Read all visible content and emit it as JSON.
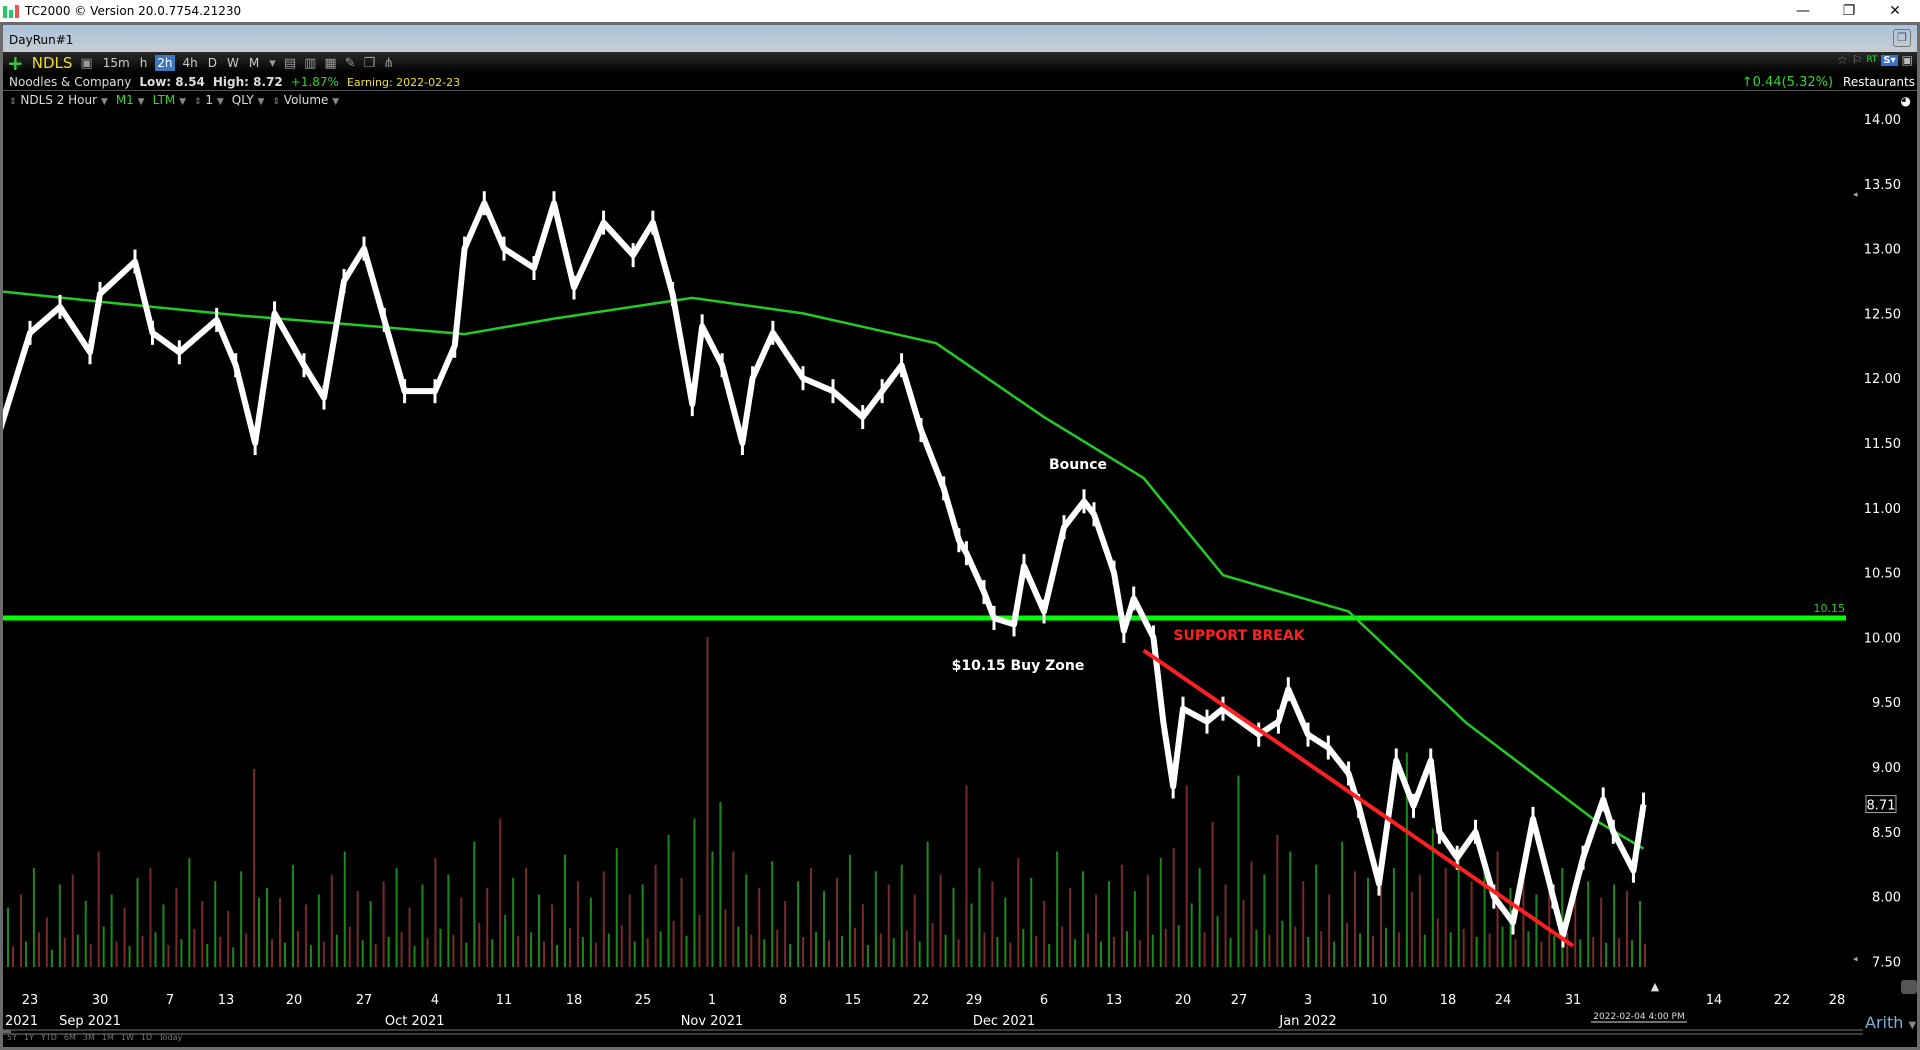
{
  "window": {
    "title": "TC2000 © Version 20.0.7754.21230",
    "minimize": "—",
    "restore": "❐",
    "close": "✕"
  },
  "tab": {
    "label": "DayRun#1"
  },
  "toolbar": {
    "symbol": "NDLS",
    "timeframes": [
      "15m",
      "h",
      "2h",
      "4h",
      "D",
      "W",
      "M"
    ],
    "active_timeframe": "2h"
  },
  "info": {
    "company": "Noodles & Company",
    "low": "Low: 8.54",
    "high": "High: 8.72",
    "change_pct": "+1.87%",
    "earning": "Earning: 2022-02-23",
    "net_change": "0.44",
    "net_change_pct": "(5.32%)",
    "industry": "Restaurants",
    "rt": "RT",
    "s_button": "S▾"
  },
  "indicators": [
    "NDLS 2 Hour",
    "M1",
    "LTM",
    "1",
    "QLY",
    "Volume"
  ],
  "colors": {
    "price": "#ffffff",
    "ma": "#22cc22",
    "support": "#00ff00",
    "trend": "#ff2020",
    "vol_up": "#1a8a1a",
    "vol_down": "#7a2a2a",
    "accent": "#3a78c0"
  },
  "chart_data": {
    "type": "line",
    "ylim": [
      7.5,
      14.0
    ],
    "y_ticks": [
      "14.00",
      "13.50",
      "13.00",
      "12.50",
      "12.00",
      "11.50",
      "11.00",
      "10.50",
      "10.00",
      "9.50",
      "9.00",
      "8.50",
      "8.00",
      "7.50"
    ],
    "y_tick_values": [
      14,
      13.5,
      13,
      12.5,
      12,
      11.5,
      11,
      10.5,
      10,
      9.5,
      9,
      8.5,
      8,
      7.5
    ],
    "x_ticks": [
      {
        "date": "2021-08-23",
        "label": "23"
      },
      {
        "date": "2021-08-30",
        "label": "30"
      },
      {
        "date": "2021-09-07",
        "label": "7"
      },
      {
        "date": "2021-09-13",
        "label": "13"
      },
      {
        "date": "2021-09-20",
        "label": "20"
      },
      {
        "date": "2021-09-27",
        "label": "27"
      },
      {
        "date": "2021-10-04",
        "label": "4"
      },
      {
        "date": "2021-10-11",
        "label": "11"
      },
      {
        "date": "2021-10-18",
        "label": "18"
      },
      {
        "date": "2021-10-25",
        "label": "25"
      },
      {
        "date": "2021-11-01",
        "label": "1"
      },
      {
        "date": "2021-11-08",
        "label": "8"
      },
      {
        "date": "2021-11-15",
        "label": "15"
      },
      {
        "date": "2021-11-22",
        "label": "22"
      },
      {
        "date": "2021-11-29",
        "label": "29"
      },
      {
        "date": "2021-12-06",
        "label": "6"
      },
      {
        "date": "2021-12-13",
        "label": "13"
      },
      {
        "date": "2021-12-20",
        "label": "20"
      },
      {
        "date": "2021-12-27",
        "label": "27"
      },
      {
        "date": "2022-01-03",
        "label": "3"
      },
      {
        "date": "2022-01-10",
        "label": "10"
      },
      {
        "date": "2022-01-18",
        "label": "18"
      },
      {
        "date": "2022-01-24",
        "label": "24"
      },
      {
        "date": "2022-01-31",
        "label": "31"
      },
      {
        "date": "2022-02-14",
        "label": "14"
      },
      {
        "date": "2022-02-22",
        "label": "22"
      },
      {
        "date": "2022-02-28",
        "label": "28"
      }
    ],
    "month_labels": [
      {
        "date": "2021-08-29",
        "label": "Sep 2021"
      },
      {
        "date": "2021-10-02",
        "label": "Oct 2021"
      },
      {
        "date": "2021-11-01",
        "label": "Nov 2021"
      },
      {
        "date": "2021-12-02",
        "label": "Dec 2021"
      },
      {
        "date": "2022-01-03",
        "label": "Jan 2022"
      }
    ],
    "left_edge_label": "2021",
    "price": [
      [
        "2021-08-20",
        11.6
      ],
      [
        "2021-08-23",
        12.35
      ],
      [
        "2021-08-26",
        12.55
      ],
      [
        "2021-08-29",
        12.2
      ],
      [
        "2021-08-30",
        12.65
      ],
      [
        "2021-09-03",
        12.9
      ],
      [
        "2021-09-05",
        12.35
      ],
      [
        "2021-09-08",
        12.2
      ],
      [
        "2021-09-12",
        12.45
      ],
      [
        "2021-09-14",
        12.1
      ],
      [
        "2021-09-16",
        11.5
      ],
      [
        "2021-09-18",
        12.5
      ],
      [
        "2021-09-21",
        12.1
      ],
      [
        "2021-09-23",
        11.85
      ],
      [
        "2021-09-25",
        12.75
      ],
      [
        "2021-09-27",
        13.0
      ],
      [
        "2021-09-29",
        12.45
      ],
      [
        "2021-10-01",
        11.9
      ],
      [
        "2021-10-04",
        11.9
      ],
      [
        "2021-10-06",
        12.25
      ],
      [
        "2021-10-07",
        13.0
      ],
      [
        "2021-10-09",
        13.35
      ],
      [
        "2021-10-11",
        13.0
      ],
      [
        "2021-10-14",
        12.85
      ],
      [
        "2021-10-16",
        13.35
      ],
      [
        "2021-10-18",
        12.7
      ],
      [
        "2021-10-21",
        13.2
      ],
      [
        "2021-10-24",
        12.95
      ],
      [
        "2021-10-26",
        13.2
      ],
      [
        "2021-10-28",
        12.65
      ],
      [
        "2021-10-30",
        11.8
      ],
      [
        "2021-10-31",
        12.4
      ],
      [
        "2021-11-02",
        12.1
      ],
      [
        "2021-11-04",
        11.5
      ],
      [
        "2021-11-05",
        12.0
      ],
      [
        "2021-11-07",
        12.35
      ],
      [
        "2021-11-10",
        12.0
      ],
      [
        "2021-11-13",
        11.9
      ],
      [
        "2021-11-16",
        11.7
      ],
      [
        "2021-11-18",
        11.9
      ],
      [
        "2021-11-20",
        12.1
      ],
      [
        "2021-11-22",
        11.6
      ],
      [
        "2021-11-25",
        11.15
      ],
      [
        "2021-11-27",
        10.75
      ],
      [
        "2021-11-28",
        10.65
      ],
      [
        "2021-11-30",
        10.35
      ],
      [
        "2021-12-01",
        10.15
      ],
      [
        "2021-12-03",
        10.1
      ],
      [
        "2021-12-04",
        10.55
      ],
      [
        "2021-12-06",
        10.2
      ],
      [
        "2021-12-08",
        10.85
      ],
      [
        "2021-12-10",
        11.05
      ],
      [
        "2021-12-11",
        10.95
      ],
      [
        "2021-12-13",
        10.5
      ],
      [
        "2021-12-14",
        10.05
      ],
      [
        "2021-12-15",
        10.3
      ],
      [
        "2021-12-17",
        10.0
      ],
      [
        "2021-12-18",
        9.35
      ],
      [
        "2021-12-19",
        8.85
      ],
      [
        "2021-12-20",
        9.45
      ],
      [
        "2021-12-23",
        9.35
      ],
      [
        "2021-12-25",
        9.45
      ],
      [
        "2021-12-29",
        9.25
      ],
      [
        "2021-12-31",
        9.35
      ],
      [
        "2022-01-01",
        9.6
      ],
      [
        "2022-01-03",
        9.25
      ],
      [
        "2022-01-05",
        9.15
      ],
      [
        "2022-01-07",
        8.95
      ],
      [
        "2022-01-08",
        8.7
      ],
      [
        "2022-01-10",
        8.1
      ],
      [
        "2022-01-12",
        9.05
      ],
      [
        "2022-01-14",
        8.7
      ],
      [
        "2022-01-16",
        9.05
      ],
      [
        "2022-01-17",
        8.5
      ],
      [
        "2022-01-19",
        8.3
      ],
      [
        "2022-01-21",
        8.5
      ],
      [
        "2022-01-23",
        8.0
      ],
      [
        "2022-01-25",
        7.8
      ],
      [
        "2022-01-27",
        8.6
      ],
      [
        "2022-01-29",
        8.0
      ],
      [
        "2022-01-30",
        7.7
      ],
      [
        "2022-02-01",
        8.3
      ],
      [
        "2022-02-03",
        8.75
      ],
      [
        "2022-02-04",
        8.5
      ],
      [
        "2022-02-06",
        8.2
      ],
      [
        "2022-02-07",
        8.71
      ]
    ],
    "moving_average": [
      [
        "2021-08-20",
        12.67
      ],
      [
        "2021-09-02",
        12.57
      ],
      [
        "2021-09-15",
        12.48
      ],
      [
        "2021-09-28",
        12.4
      ],
      [
        "2021-10-07",
        12.34
      ],
      [
        "2021-10-16",
        12.46
      ],
      [
        "2021-10-30",
        12.62
      ],
      [
        "2021-11-10",
        12.5
      ],
      [
        "2021-11-24",
        12.27
      ],
      [
        "2021-12-06",
        11.7
      ],
      [
        "2021-12-16",
        11.23
      ],
      [
        "2021-12-25",
        10.48
      ],
      [
        "2022-01-07",
        10.2
      ],
      [
        "2022-01-20",
        9.34
      ],
      [
        "2022-02-02",
        8.6
      ],
      [
        "2022-02-07",
        8.37
      ]
    ],
    "support_level": 10.15,
    "support_label": "10.15",
    "trendline": [
      [
        "2021-12-16",
        9.9
      ],
      [
        "2022-01-31",
        7.62
      ]
    ],
    "last_price": "8.71",
    "last_bar_label": "2022-02-04 4:00 PM",
    "volume_relative": [
      18,
      -22,
      30,
      -15,
      25,
      -28,
      20,
      -35,
      22,
      -18,
      27,
      -30,
      19,
      -24,
      33,
      -20,
      26,
      -17,
      29,
      -60,
      24,
      -21,
      31,
      -19,
      22,
      -28,
      35,
      -23,
      20,
      -26,
      30,
      -18,
      25,
      -33,
      28,
      -21,
      38,
      -24,
      -45,
      27,
      -30,
      22,
      -19,
      34,
      -26,
      21,
      -29,
      36,
      -22,
      25,
      -31,
      40,
      -27,
      45,
      -100,
      50,
      -35,
      28,
      -24,
      32,
      -20,
      26,
      -30,
      23,
      -27,
      34,
      -19,
      29,
      -25,
      31,
      -22,
      38,
      -28,
      24,
      -55,
      30,
      -26,
      21,
      -33,
      27,
      -20,
      35,
      -24,
      29,
      -22,
      26,
      -31,
      23,
      -28,
      33,
      -36,
      -55,
      30,
      -44,
      -25,
      58,
      -32,
      28,
      -40,
      35,
      -26,
      31,
      -22,
      38,
      -29,
      27,
      -34,
      30,
      65,
      -28,
      42,
      -30,
      33,
      -26,
      29,
      -35,
      24,
      -31,
      22,
      -27,
      30,
      -24,
      26,
      -21,
      25,
      -23,
      20
    ],
    "annotations": [
      {
        "text": "Bounce",
        "color": "#ffffff"
      },
      {
        "text": "$10.15 Buy Zone",
        "color": "#ffffff"
      },
      {
        "text": "SUPPORT BREAK",
        "color": "#ff2020"
      }
    ],
    "scale_mode": "Arith"
  },
  "range_buttons": [
    "5Y",
    "1Y",
    "YTD",
    "6M",
    "3M",
    "1M",
    "1W",
    "1D",
    "Today"
  ]
}
